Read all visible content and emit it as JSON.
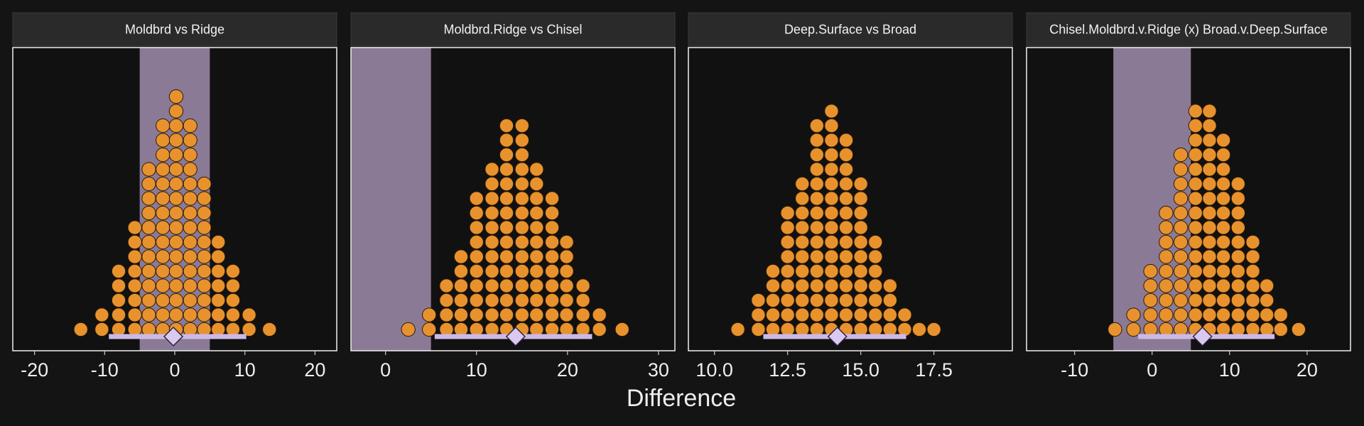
{
  "chart_data": {
    "type": "dotplot",
    "xlabel": "Difference",
    "rope": [
      -5,
      5
    ],
    "panels": [
      {
        "title": "Moldbrd vs Ridge",
        "x": [
          -13.4,
          -10.4,
          -8.0,
          -5.7,
          -3.7,
          -1.7,
          0.2,
          2.2,
          4.2,
          6.2,
          8.3,
          10.6,
          13.5
        ],
        "values": [
          1,
          2,
          5,
          8,
          12,
          15,
          17,
          15,
          11,
          7,
          5,
          2,
          1
        ],
        "interval": [
          -9.4,
          10.2
        ],
        "point": -0.2,
        "xlim": [
          -23.1,
          23.1
        ],
        "xticks": [
          -20,
          -10,
          0,
          10,
          20
        ]
      },
      {
        "title": "Moldbrd.Ridge vs Chisel",
        "x": [
          2.5,
          4.8,
          6.7,
          8.3,
          10.0,
          11.7,
          13.3,
          15.0,
          16.6,
          18.3,
          19.9,
          21.7,
          23.5,
          26.0
        ],
        "values": [
          1,
          2,
          4,
          6,
          10,
          12,
          15,
          15,
          12,
          10,
          7,
          4,
          2,
          1
        ],
        "interval": [
          5.4,
          22.7
        ],
        "point": 14.3,
        "xlim": [
          -3.8,
          31.8
        ],
        "xticks": [
          0,
          10,
          20,
          30
        ]
      },
      {
        "title": "Deep.Surface vs Broad",
        "x": [
          10.8,
          11.5,
          12.0,
          12.5,
          13.0,
          13.5,
          14.0,
          14.5,
          15.0,
          15.5,
          16.0,
          16.5,
          17.0,
          17.5
        ],
        "values": [
          1,
          3,
          5,
          9,
          11,
          15,
          16,
          14,
          11,
          7,
          4,
          2,
          1,
          1
        ],
        "interval": [
          11.67,
          16.55
        ],
        "point": 14.2,
        "xlim": [
          9.11,
          20.18
        ],
        "xticks": [
          {
            "value": 10,
            "label": "10.0"
          },
          12.5,
          {
            "value": 15,
            "label": "15.0"
          },
          17.5
        ]
      },
      {
        "title": "Chisel.Moldbrd.v.Ridge (x) Broad.v.Deep.Surface",
        "x": [
          -4.8,
          -2.4,
          -0.2,
          1.8,
          3.7,
          5.6,
          7.4,
          9.2,
          11.1,
          13.0,
          14.8,
          16.6,
          18.9
        ],
        "values": [
          1,
          2,
          5,
          9,
          13,
          16,
          16,
          14,
          11,
          7,
          4,
          2,
          1
        ],
        "interval": [
          -1.8,
          15.8
        ],
        "point": 6.5,
        "xlim": [
          -16.2,
          25.6
        ],
        "xticks": [
          -10,
          0,
          10,
          20
        ]
      }
    ]
  }
}
